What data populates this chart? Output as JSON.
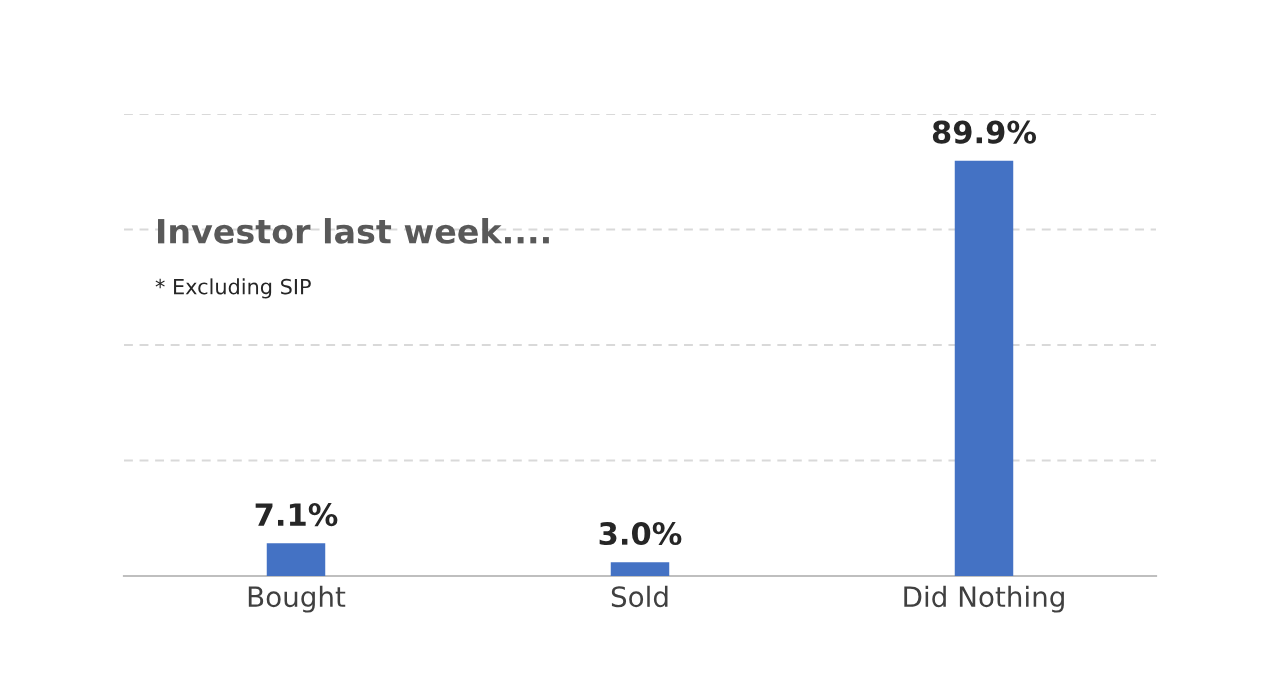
{
  "chart_data": {
    "type": "bar",
    "title": "Investor last week....",
    "annotations": [
      "* Excluding SIP"
    ],
    "categories": [
      "Bought",
      "Sold",
      "Did Nothing"
    ],
    "values": [
      7.1,
      3.0,
      89.9
    ],
    "value_labels": [
      "7.1%",
      "3.0%",
      "89.9%"
    ],
    "color": "#4472c4",
    "ylim": [
      0,
      100
    ],
    "yticks": [
      {
        "value": 0,
        "label": null
      },
      {
        "value": 25,
        "label": null
      },
      {
        "value": 50,
        "label": null
      },
      {
        "value": 75,
        "label": null
      },
      {
        "value": 100,
        "label": null
      }
    ],
    "tick_labels": "x",
    "grid": "y"
  }
}
